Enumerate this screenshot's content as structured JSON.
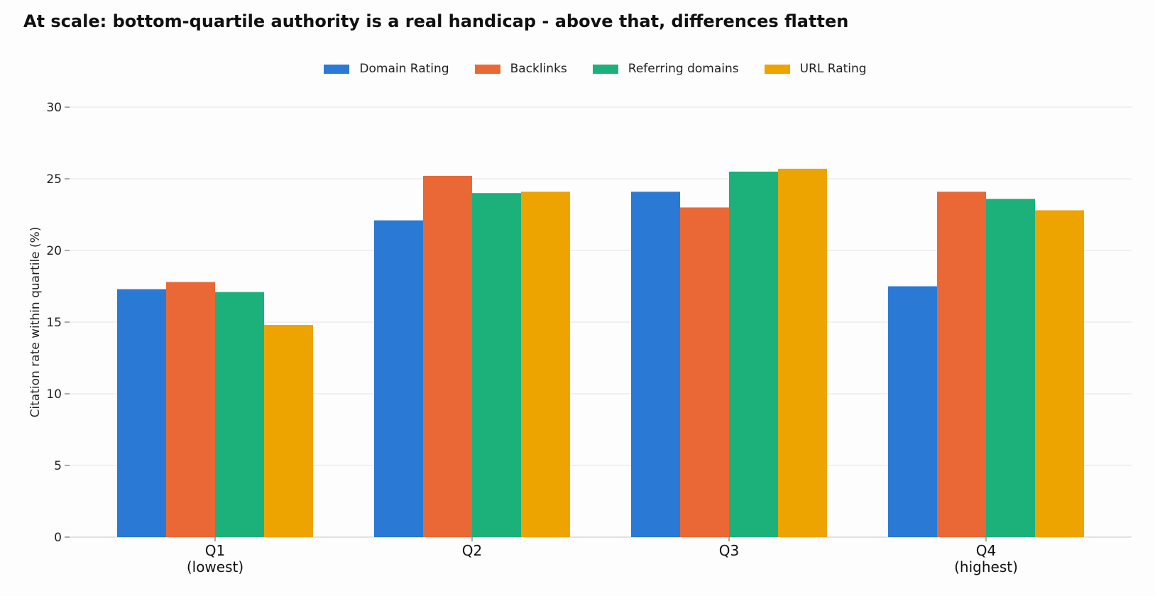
{
  "chart_data": {
    "type": "bar",
    "title": "At scale: bottom-quartile authority is a real handicap - above that, differences flatten",
    "xlabel": "",
    "ylabel": "Citation rate within quartile (%)",
    "categories": [
      {
        "line1": "Q1",
        "line2": "(lowest)"
      },
      {
        "line1": "Q2",
        "line2": ""
      },
      {
        "line1": "Q3",
        "line2": ""
      },
      {
        "line1": "Q4",
        "line2": "(highest)"
      }
    ],
    "ylim": [
      0,
      30
    ],
    "yticks": [
      0,
      5,
      10,
      15,
      20,
      25,
      30
    ],
    "grid": true,
    "legend_position": "top-center",
    "series": [
      {
        "name": "Domain Rating",
        "color": "#2a7ad5",
        "values": [
          17.3,
          22.1,
          24.1,
          17.5
        ]
      },
      {
        "name": "Backlinks",
        "color": "#ea6836",
        "values": [
          17.8,
          25.2,
          23.0,
          24.1
        ]
      },
      {
        "name": "Referring domains",
        "color": "#1cb07b",
        "values": [
          17.1,
          24.0,
          25.5,
          23.6
        ]
      },
      {
        "name": "URL Rating",
        "color": "#eda300",
        "values": [
          14.8,
          24.1,
          25.7,
          22.8
        ]
      }
    ]
  }
}
